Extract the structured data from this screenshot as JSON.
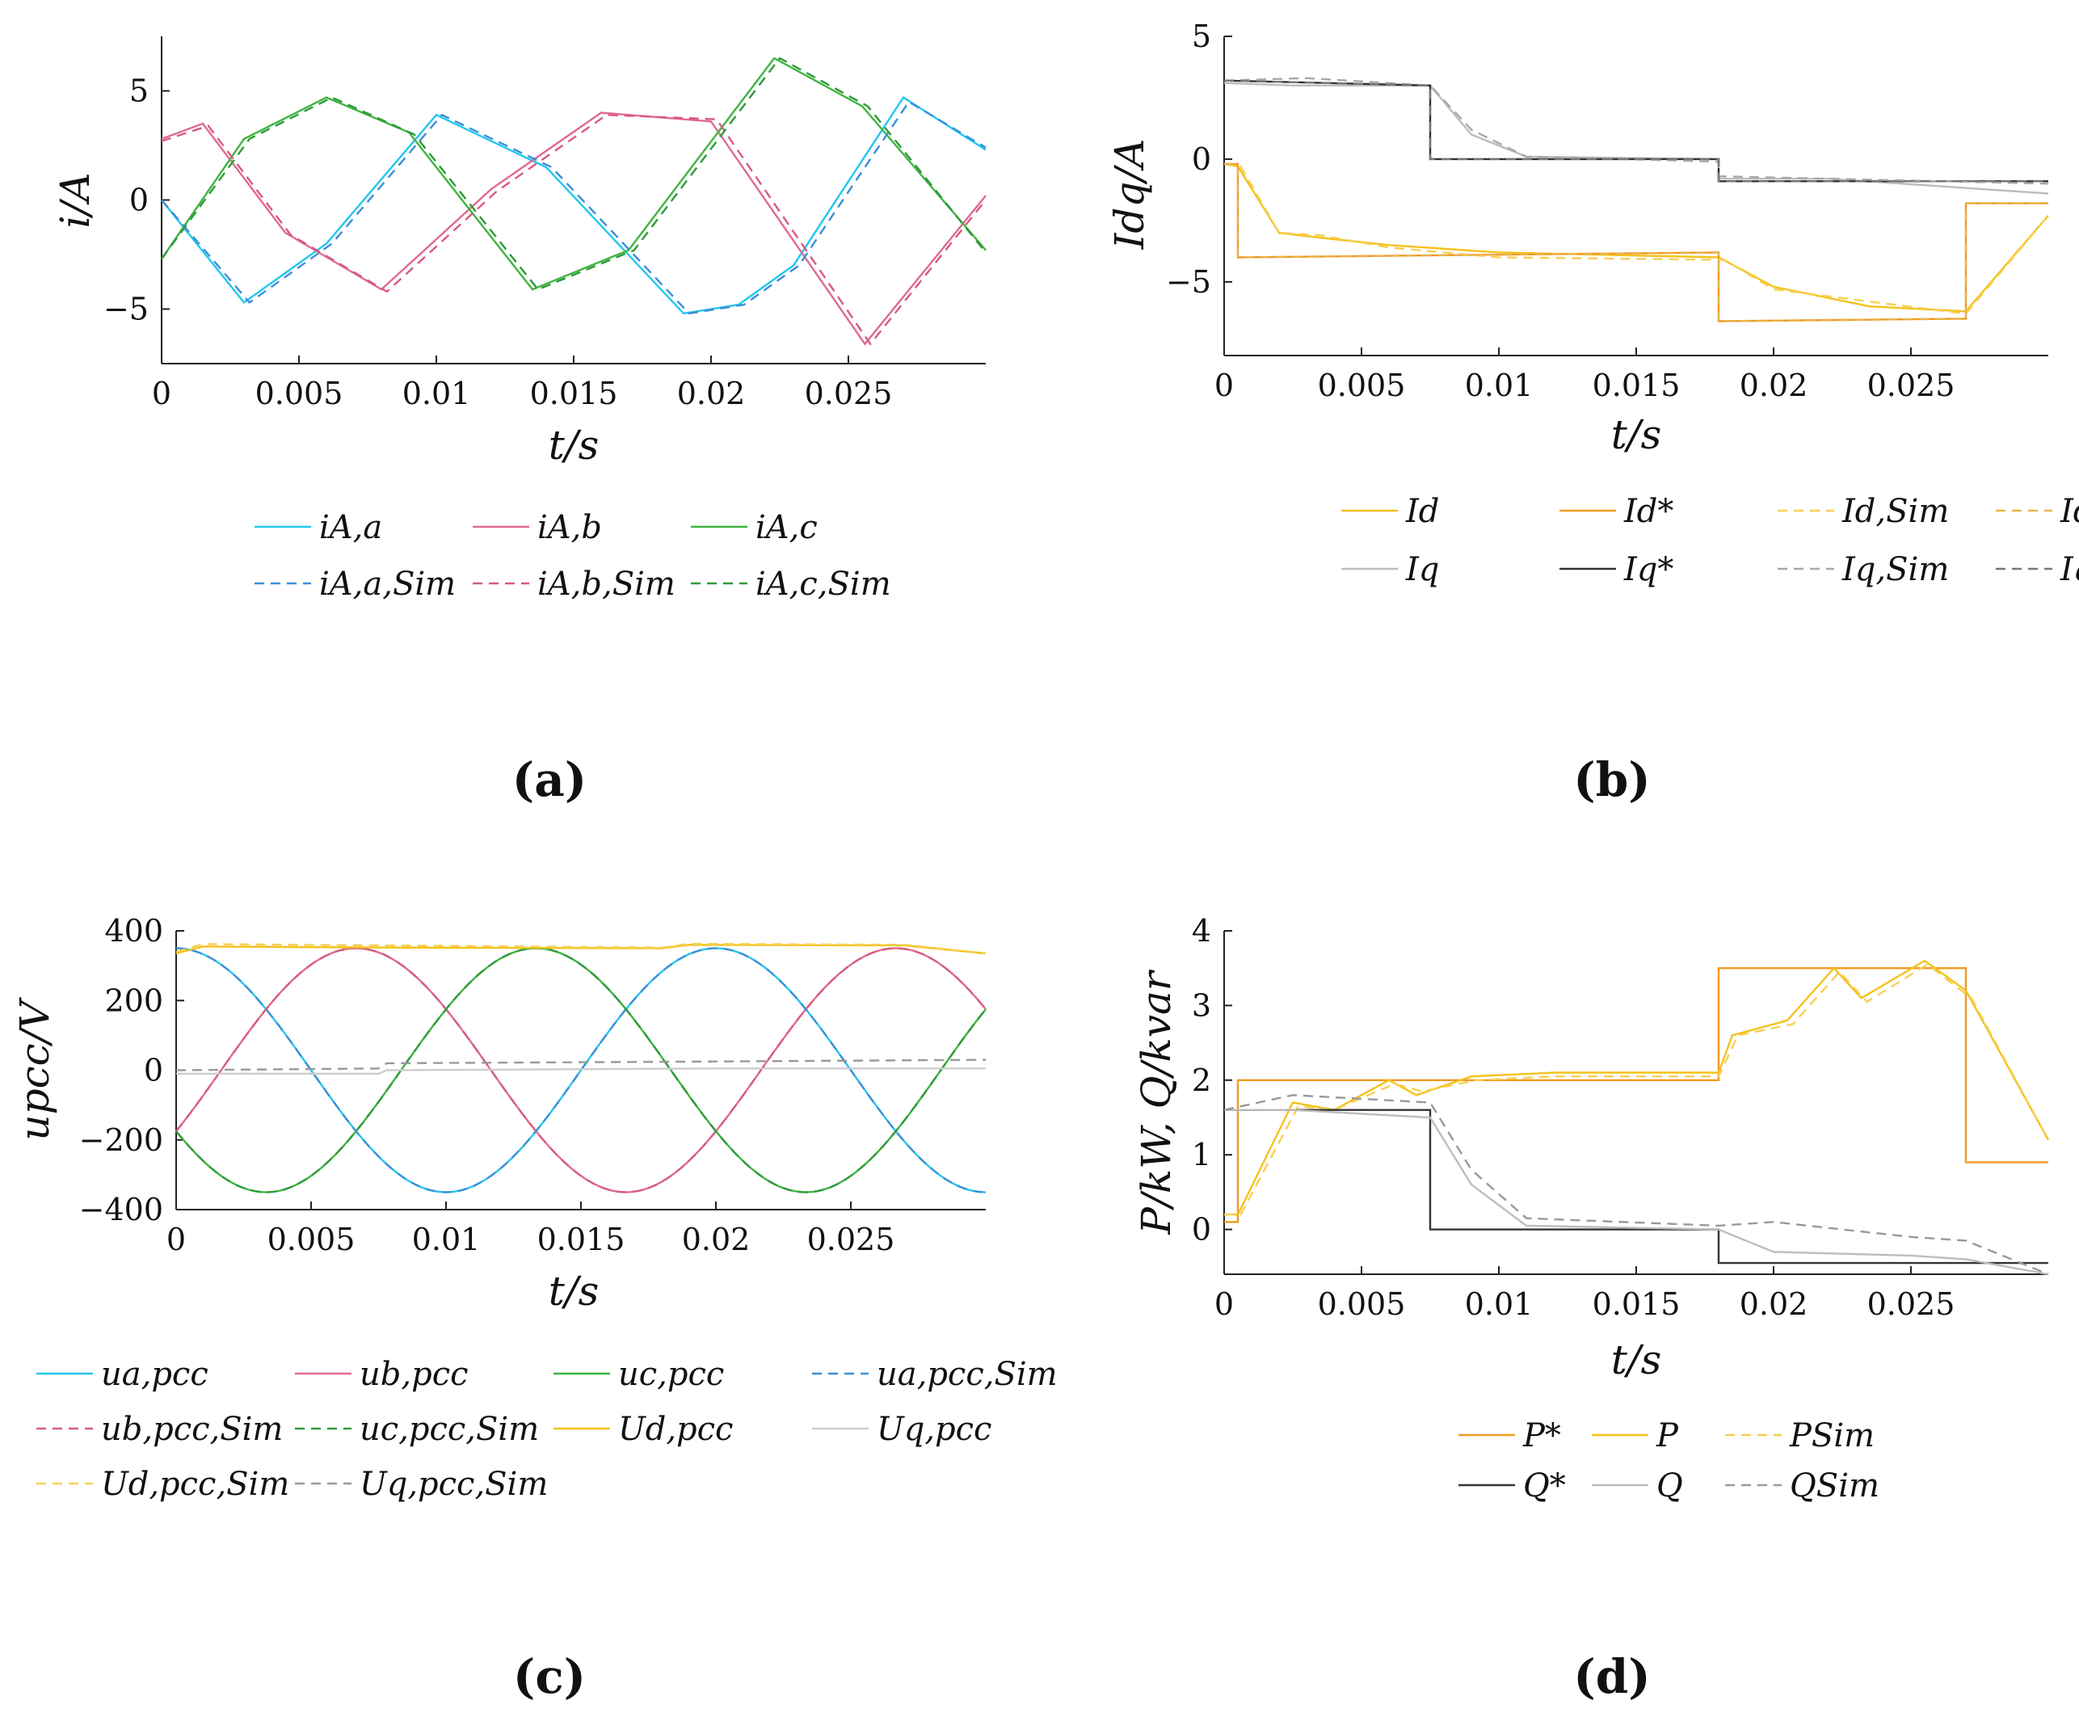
{
  "chart_data": [
    {
      "id": "a",
      "type": "line",
      "panel_label": "(a)",
      "xlabel": "t/s",
      "ylabel": "i/A",
      "xlim": [
        0,
        0.03
      ],
      "ylim": [
        -7.5,
        7.5
      ],
      "x_ticks": [
        "0",
        "0.005",
        "0.01",
        "0.015",
        "0.02",
        "0.025"
      ],
      "y_ticks": [
        "5",
        "0",
        "−5"
      ],
      "series": [
        {
          "name": "i_A,a",
          "label": "iA,a",
          "color": "#22c7ee",
          "dash": false,
          "x": [
            0,
            0.003,
            0.006,
            0.01,
            0.014,
            0.019,
            0.021,
            0.023,
            0.027,
            0.03
          ],
          "y": [
            0,
            -4.7,
            -2,
            3.9,
            1.5,
            -5.2,
            -4.8,
            -3,
            4.7,
            2.3
          ]
        },
        {
          "name": "i_A,b",
          "label": "iA,b",
          "color": "#e06a8e",
          "dash": false,
          "x": [
            0,
            0.0015,
            0.0045,
            0.008,
            0.012,
            0.016,
            0.02,
            0.0256,
            0.03
          ],
          "y": [
            2.8,
            3.5,
            -1.5,
            -4.1,
            0.5,
            4.0,
            3.6,
            -6.6,
            0.2
          ]
        },
        {
          "name": "i_A,c",
          "label": "iA,c",
          "color": "#3fb43f",
          "dash": false,
          "x": [
            0,
            0.003,
            0.006,
            0.009,
            0.0135,
            0.017,
            0.0223,
            0.0255,
            0.03
          ],
          "y": [
            -2.7,
            2.8,
            4.7,
            3.1,
            -4.1,
            -2.3,
            6.5,
            4.3,
            -2.3
          ]
        },
        {
          "name": "i_A,a,Sim",
          "label": "iA,a,Sim",
          "color": "#3c8ed8",
          "dash": true,
          "x": [
            0,
            0.0032,
            0.0062,
            0.0102,
            0.0142,
            0.0192,
            0.0212,
            0.0232,
            0.0272,
            0.03
          ],
          "y": [
            0,
            -4.7,
            -2,
            3.9,
            1.5,
            -5.2,
            -4.8,
            -3,
            4.5,
            2.4
          ]
        },
        {
          "name": "i_A,b,Sim",
          "label": "iA,b,Sim",
          "color": "#d65a83",
          "dash": true,
          "x": [
            0,
            0.0017,
            0.0047,
            0.0082,
            0.0122,
            0.0162,
            0.0202,
            0.0258,
            0.03
          ],
          "y": [
            2.7,
            3.4,
            -1.6,
            -4.2,
            0.4,
            3.9,
            3.7,
            -6.6,
            0.0
          ]
        },
        {
          "name": "i_A,c,Sim",
          "label": "iA,c,Sim",
          "color": "#2e9a3a",
          "dash": true,
          "x": [
            0,
            0.0032,
            0.0062,
            0.0092,
            0.0137,
            0.0172,
            0.0225,
            0.0257,
            0.03
          ],
          "y": [
            -2.7,
            2.8,
            4.7,
            3.0,
            -4.1,
            -2.3,
            6.5,
            4.3,
            -2.4
          ]
        }
      ],
      "legend": {
        "rows": 2,
        "cols": 3,
        "items": [
          "iA,a",
          "iA,b",
          "iA,c",
          "iA,a,Sim",
          "iA,b,Sim",
          "iA,c,Sim"
        ]
      }
    },
    {
      "id": "b",
      "type": "line",
      "panel_label": "(b)",
      "xlabel": "t/s",
      "ylabel": "Idq/A",
      "xlim": [
        0,
        0.03
      ],
      "ylim": [
        -8,
        5
      ],
      "x_ticks": [
        "0",
        "0.005",
        "0.01",
        "0.015",
        "0.02",
        "0.025"
      ],
      "y_ticks": [
        "5",
        "0",
        "−5"
      ],
      "series": [
        {
          "name": "I_d",
          "label": "Id",
          "color": "#f5c21a",
          "dash": false,
          "x": [
            0,
            0.0005,
            0.002,
            0.0035,
            0.006,
            0.01,
            0.018,
            0.018,
            0.02,
            0.0235,
            0.027,
            0.03
          ],
          "y": [
            -0.2,
            -0.3,
            -3,
            -3.2,
            -3.5,
            -3.8,
            -4.0,
            -4.0,
            -5.2,
            -6.0,
            -6.2,
            -2.3
          ]
        },
        {
          "name": "I_d*",
          "label": "Id*",
          "color": "#f09a1e",
          "dash": false,
          "x": [
            0,
            0.0005,
            0.0005,
            0.018,
            0.018,
            0.027,
            0.027,
            0.03
          ],
          "y": [
            -0.2,
            -0.2,
            -4.0,
            -3.8,
            -6.6,
            -6.5,
            -1.8,
            -1.8
          ]
        },
        {
          "name": "I_d,Sim",
          "label": "Id,Sim",
          "color": "#f7cf55",
          "dash": true,
          "x": [
            0,
            0.0006,
            0.002,
            0.0035,
            0.006,
            0.01,
            0.018,
            0.0182,
            0.02,
            0.0235,
            0.027,
            0.03
          ],
          "y": [
            -0.2,
            -0.3,
            -3,
            -3.1,
            -3.6,
            -4.0,
            -4.1,
            -4.1,
            -5.3,
            -5.8,
            -6.3,
            -2.3
          ]
        },
        {
          "name": "I_d*,Sim",
          "label": "Id*,Sim",
          "color": "#e8b352",
          "dash": true,
          "x": [
            0,
            0.0005,
            0.0005,
            0.018,
            0.018,
            0.027,
            0.027,
            0.03
          ],
          "y": [
            -0.2,
            -0.2,
            -4.0,
            -3.8,
            -6.6,
            -6.5,
            -1.8,
            -1.8
          ]
        },
        {
          "name": "I_q",
          "label": "Iq",
          "color": "#bdbdbd",
          "dash": false,
          "x": [
            0,
            0.0025,
            0.0075,
            0.009,
            0.011,
            0.018,
            0.018,
            0.022,
            0.03
          ],
          "y": [
            3.1,
            3.0,
            3.0,
            1.0,
            0.1,
            0,
            -0.8,
            -0.8,
            -1.4
          ]
        },
        {
          "name": "I_q*",
          "label": "Iq*",
          "color": "#333333",
          "dash": false,
          "x": [
            0,
            0.0075,
            0.0075,
            0.018,
            0.018,
            0.03
          ],
          "y": [
            3.2,
            3.0,
            0,
            0,
            -0.9,
            -0.9
          ]
        },
        {
          "name": "I_q,Sim",
          "label": "Iq,Sim",
          "color": "#a8a8a8",
          "dash": true,
          "x": [
            0,
            0.003,
            0.0075,
            0.009,
            0.011,
            0.018,
            0.018,
            0.022,
            0.03
          ],
          "y": [
            3.2,
            3.3,
            3.0,
            1.2,
            0.1,
            -0.1,
            -0.7,
            -0.8,
            -1.0
          ]
        },
        {
          "name": "I_q*,Sim",
          "label": "Iq*,Sim",
          "color": "#777777",
          "dash": true,
          "x": [
            0,
            0.0075,
            0.0075,
            0.018,
            0.018,
            0.03
          ],
          "y": [
            3.2,
            3.0,
            0,
            0,
            -0.9,
            -0.9
          ]
        }
      ],
      "legend": {
        "rows": 2,
        "cols": 4,
        "items": [
          "Id",
          "Id*",
          "Id,Sim",
          "Id*,Sim",
          "Iq",
          "Iq*",
          "Iq,Sim",
          "Iq*,Sim"
        ]
      }
    },
    {
      "id": "c",
      "type": "line",
      "panel_label": "(c)",
      "xlabel": "t/s",
      "ylabel": "upcc/V",
      "xlim": [
        0,
        0.03
      ],
      "ylim": [
        -400,
        400
      ],
      "x_ticks": [
        "0",
        "0.005",
        "0.01",
        "0.015",
        "0.02",
        "0.025"
      ],
      "y_ticks": [
        "400",
        "200",
        "0",
        "−200",
        "−400"
      ],
      "series": [
        {
          "name": "u_a,pcc",
          "label": "ua,pcc",
          "color": "#22c7ee",
          "dash": false,
          "wave": {
            "amp": 350,
            "f": 50,
            "phase": 90
          }
        },
        {
          "name": "u_b,pcc",
          "label": "ub,pcc",
          "color": "#e06a8e",
          "dash": false,
          "wave": {
            "amp": 350,
            "f": 50,
            "phase": -30
          }
        },
        {
          "name": "u_c,pcc",
          "label": "uc,pcc",
          "color": "#3fb43f",
          "dash": false,
          "wave": {
            "amp": 350,
            "f": 50,
            "phase": 210
          }
        },
        {
          "name": "u_a,pcc,Sim",
          "label": "ua,pcc,Sim",
          "color": "#3c8ed8",
          "dash": true,
          "wave": {
            "amp": 350,
            "f": 50,
            "phase": 90
          }
        },
        {
          "name": "u_b,pcc,Sim",
          "label": "ub,pcc,Sim",
          "color": "#d65a83",
          "dash": true,
          "wave": {
            "amp": 350,
            "f": 50,
            "phase": -30
          }
        },
        {
          "name": "u_c,pcc,Sim",
          "label": "uc,pcc,Sim",
          "color": "#2e9a3a",
          "dash": true,
          "wave": {
            "amp": 350,
            "f": 50,
            "phase": 210
          }
        },
        {
          "name": "U_d,pcc",
          "label": "Ud,pcc",
          "color": "#f5c21a",
          "dash": false,
          "x": [
            0,
            0.001,
            0.008,
            0.018,
            0.019,
            0.027,
            0.03
          ],
          "y": [
            335,
            355,
            352,
            350,
            360,
            358,
            335
          ]
        },
        {
          "name": "U_q,pcc",
          "label": "Uq,pcc",
          "color": "#cccccc",
          "dash": false,
          "x": [
            0,
            0.0075,
            0.0078,
            0.02,
            0.03
          ],
          "y": [
            -10,
            -10,
            0,
            5,
            5
          ]
        },
        {
          "name": "U_d,pcc,Sim",
          "label": "Ud,pcc,Sim",
          "color": "#f7cf55",
          "dash": true,
          "x": [
            0,
            0.001,
            0.008,
            0.018,
            0.019,
            0.027,
            0.03
          ],
          "y": [
            340,
            362,
            358,
            352,
            363,
            360,
            335
          ]
        },
        {
          "name": "U_q,pcc,Sim",
          "label": "Uq,pcc,Sim",
          "color": "#999999",
          "dash": true,
          "x": [
            0,
            0.0075,
            0.0078,
            0.02,
            0.03
          ],
          "y": [
            0,
            5,
            20,
            25,
            30
          ]
        }
      ],
      "legend": {
        "rows": 3,
        "cols": 4,
        "items": [
          "ua,pcc",
          "ub,pcc",
          "uc,pcc",
          "ua,pcc,Sim",
          "ub,pcc,Sim",
          "uc,pcc,Sim",
          "Ud,pcc",
          "Uq,pcc",
          "Ud,pcc,Sim",
          "Uq,pcc,Sim"
        ]
      }
    },
    {
      "id": "d",
      "type": "line",
      "panel_label": "(d)",
      "xlabel": "t/s",
      "ylabel": "P/kW, Q/kvar",
      "xlim": [
        0,
        0.03
      ],
      "ylim": [
        -0.6,
        4
      ],
      "x_ticks": [
        "0",
        "0.005",
        "0.01",
        "0.015",
        "0.02",
        "0.025"
      ],
      "y_ticks": [
        "4",
        "3",
        "2",
        "1",
        "0"
      ],
      "series": [
        {
          "name": "P*",
          "label": "P*",
          "color": "#f09a1e",
          "dash": false,
          "x": [
            0,
            0.0005,
            0.0005,
            0.018,
            0.018,
            0.027,
            0.027,
            0.03
          ],
          "y": [
            0.1,
            0.1,
            2.0,
            2.0,
            3.5,
            3.5,
            0.9,
            0.9
          ]
        },
        {
          "name": "P",
          "label": "P",
          "color": "#f5c21a",
          "dash": false,
          "x": [
            0,
            0.0005,
            0.0025,
            0.004,
            0.006,
            0.007,
            0.009,
            0.012,
            0.018,
            0.0185,
            0.0205,
            0.0222,
            0.0232,
            0.0255,
            0.027,
            0.03
          ],
          "y": [
            0.2,
            0.2,
            1.7,
            1.6,
            2.0,
            1.8,
            2.05,
            2.1,
            2.1,
            2.6,
            2.8,
            3.5,
            3.1,
            3.6,
            3.2,
            1.2
          ]
        },
        {
          "name": "P_Sim",
          "label": "PSim",
          "color": "#f7cf55",
          "dash": true,
          "x": [
            0,
            0.0006,
            0.0027,
            0.004,
            0.0062,
            0.0072,
            0.0092,
            0.012,
            0.018,
            0.0187,
            0.0207,
            0.0224,
            0.0234,
            0.0256,
            0.0272,
            0.03
          ],
          "y": [
            0.2,
            0.2,
            1.65,
            1.6,
            1.95,
            1.85,
            2.0,
            2.05,
            2.05,
            2.6,
            2.75,
            3.45,
            3.05,
            3.55,
            3.1,
            1.2
          ]
        },
        {
          "name": "Q*",
          "label": "Q*",
          "color": "#333333",
          "dash": false,
          "x": [
            0,
            0.0075,
            0.0075,
            0.018,
            0.018,
            0.03
          ],
          "y": [
            1.6,
            1.6,
            0,
            0,
            -0.45,
            -0.45
          ]
        },
        {
          "name": "Q",
          "label": "Q",
          "color": "#bdbdbd",
          "dash": false,
          "x": [
            0,
            0.0025,
            0.0075,
            0.009,
            0.011,
            0.018,
            0.02,
            0.025,
            0.027,
            0.03
          ],
          "y": [
            1.6,
            1.6,
            1.5,
            0.6,
            0.05,
            0,
            -0.3,
            -0.35,
            -0.4,
            -0.6
          ]
        },
        {
          "name": "Q_Sim",
          "label": "QSim",
          "color": "#999999",
          "dash": true,
          "x": [
            0,
            0.0025,
            0.0075,
            0.009,
            0.011,
            0.018,
            0.02,
            0.025,
            0.027,
            0.03
          ],
          "y": [
            1.6,
            1.8,
            1.7,
            0.8,
            0.15,
            0.05,
            0.1,
            -0.1,
            -0.15,
            -0.6
          ]
        }
      ],
      "legend": {
        "rows": 2,
        "cols": 3,
        "items": [
          "P*",
          "P",
          "PSim",
          "Q*",
          "Q",
          "QSim"
        ]
      }
    }
  ]
}
